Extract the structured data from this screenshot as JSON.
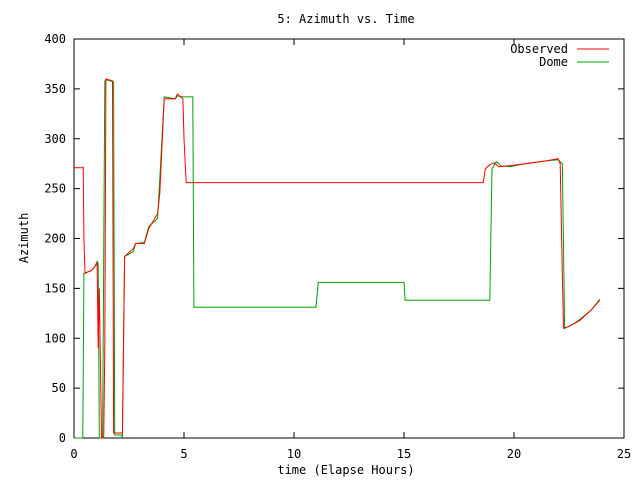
{
  "chart_data": {
    "type": "line",
    "title": "5: Azimuth vs. Time",
    "xlabel": "time (Elapse Hours)",
    "ylabel": "Azimuth",
    "xlim": [
      0,
      25
    ],
    "ylim": [
      0,
      400
    ],
    "xticks": [
      0,
      5,
      10,
      15,
      20,
      25
    ],
    "yticks": [
      0,
      50,
      100,
      150,
      200,
      250,
      300,
      350,
      400
    ],
    "grid": false,
    "legend": "top-right",
    "series": [
      {
        "name": "Observed",
        "color": "#ff0000",
        "points": [
          [
            0.0,
            271
          ],
          [
            0.4,
            271
          ],
          [
            0.42,
            272
          ],
          [
            0.45,
            200
          ],
          [
            0.5,
            165
          ],
          [
            0.8,
            168
          ],
          [
            0.95,
            172
          ],
          [
            1.05,
            175
          ],
          [
            1.1,
            90
          ],
          [
            1.15,
            150
          ],
          [
            1.25,
            0
          ],
          [
            1.35,
            0
          ],
          [
            1.4,
            90
          ],
          [
            1.45,
            360
          ],
          [
            1.75,
            358
          ],
          [
            1.8,
            5
          ],
          [
            2.2,
            5
          ],
          [
            2.3,
            182
          ],
          [
            2.7,
            190
          ],
          [
            2.8,
            195
          ],
          [
            3.2,
            195
          ],
          [
            3.4,
            210
          ],
          [
            3.8,
            225
          ],
          [
            3.9,
            245
          ],
          [
            4.1,
            340
          ],
          [
            4.6,
            340
          ],
          [
            4.7,
            345
          ],
          [
            4.95,
            340
          ],
          [
            5.0,
            300
          ],
          [
            5.1,
            256
          ],
          [
            10,
            256
          ],
          [
            15,
            256
          ],
          [
            18.6,
            256
          ],
          [
            18.7,
            270
          ],
          [
            18.9,
            274
          ],
          [
            19.1,
            276
          ],
          [
            19.3,
            272
          ],
          [
            19.8,
            273
          ],
          [
            20.5,
            275
          ],
          [
            21.5,
            278
          ],
          [
            22.0,
            280
          ],
          [
            22.1,
            275
          ],
          [
            22.2,
            160
          ],
          [
            22.25,
            110
          ],
          [
            22.5,
            112
          ],
          [
            23.0,
            118
          ],
          [
            23.5,
            128
          ],
          [
            23.9,
            138
          ]
        ]
      },
      {
        "name": "Dome",
        "color": "#00a000",
        "points": [
          [
            0.0,
            0
          ],
          [
            0.4,
            0
          ],
          [
            0.45,
            165
          ],
          [
            0.8,
            168
          ],
          [
            0.95,
            172
          ],
          [
            1.05,
            177
          ],
          [
            1.1,
            175
          ],
          [
            1.15,
            0
          ],
          [
            1.3,
            0
          ],
          [
            1.4,
            358
          ],
          [
            1.5,
            359
          ],
          [
            1.8,
            357
          ],
          [
            1.85,
            3
          ],
          [
            2.15,
            3
          ],
          [
            2.2,
            0
          ],
          [
            2.3,
            182
          ],
          [
            2.7,
            187
          ],
          [
            2.8,
            195
          ],
          [
            3.2,
            196
          ],
          [
            3.4,
            212
          ],
          [
            3.8,
            220
          ],
          [
            3.9,
            260
          ],
          [
            4.1,
            342
          ],
          [
            4.6,
            340
          ],
          [
            4.7,
            343
          ],
          [
            4.95,
            342
          ],
          [
            5.4,
            342
          ],
          [
            5.45,
            131
          ],
          [
            11.0,
            131
          ],
          [
            11.1,
            156
          ],
          [
            15.0,
            156
          ],
          [
            15.05,
            138
          ],
          [
            18.9,
            138
          ],
          [
            19.0,
            270
          ],
          [
            19.2,
            277
          ],
          [
            19.4,
            273
          ],
          [
            19.8,
            272
          ],
          [
            20.5,
            275
          ],
          [
            21.5,
            278
          ],
          [
            22.0,
            279
          ],
          [
            22.2,
            275
          ],
          [
            22.3,
            110
          ],
          [
            22.6,
            113
          ],
          [
            23.0,
            119
          ],
          [
            23.5,
            128
          ],
          [
            23.9,
            139
          ]
        ]
      }
    ]
  }
}
